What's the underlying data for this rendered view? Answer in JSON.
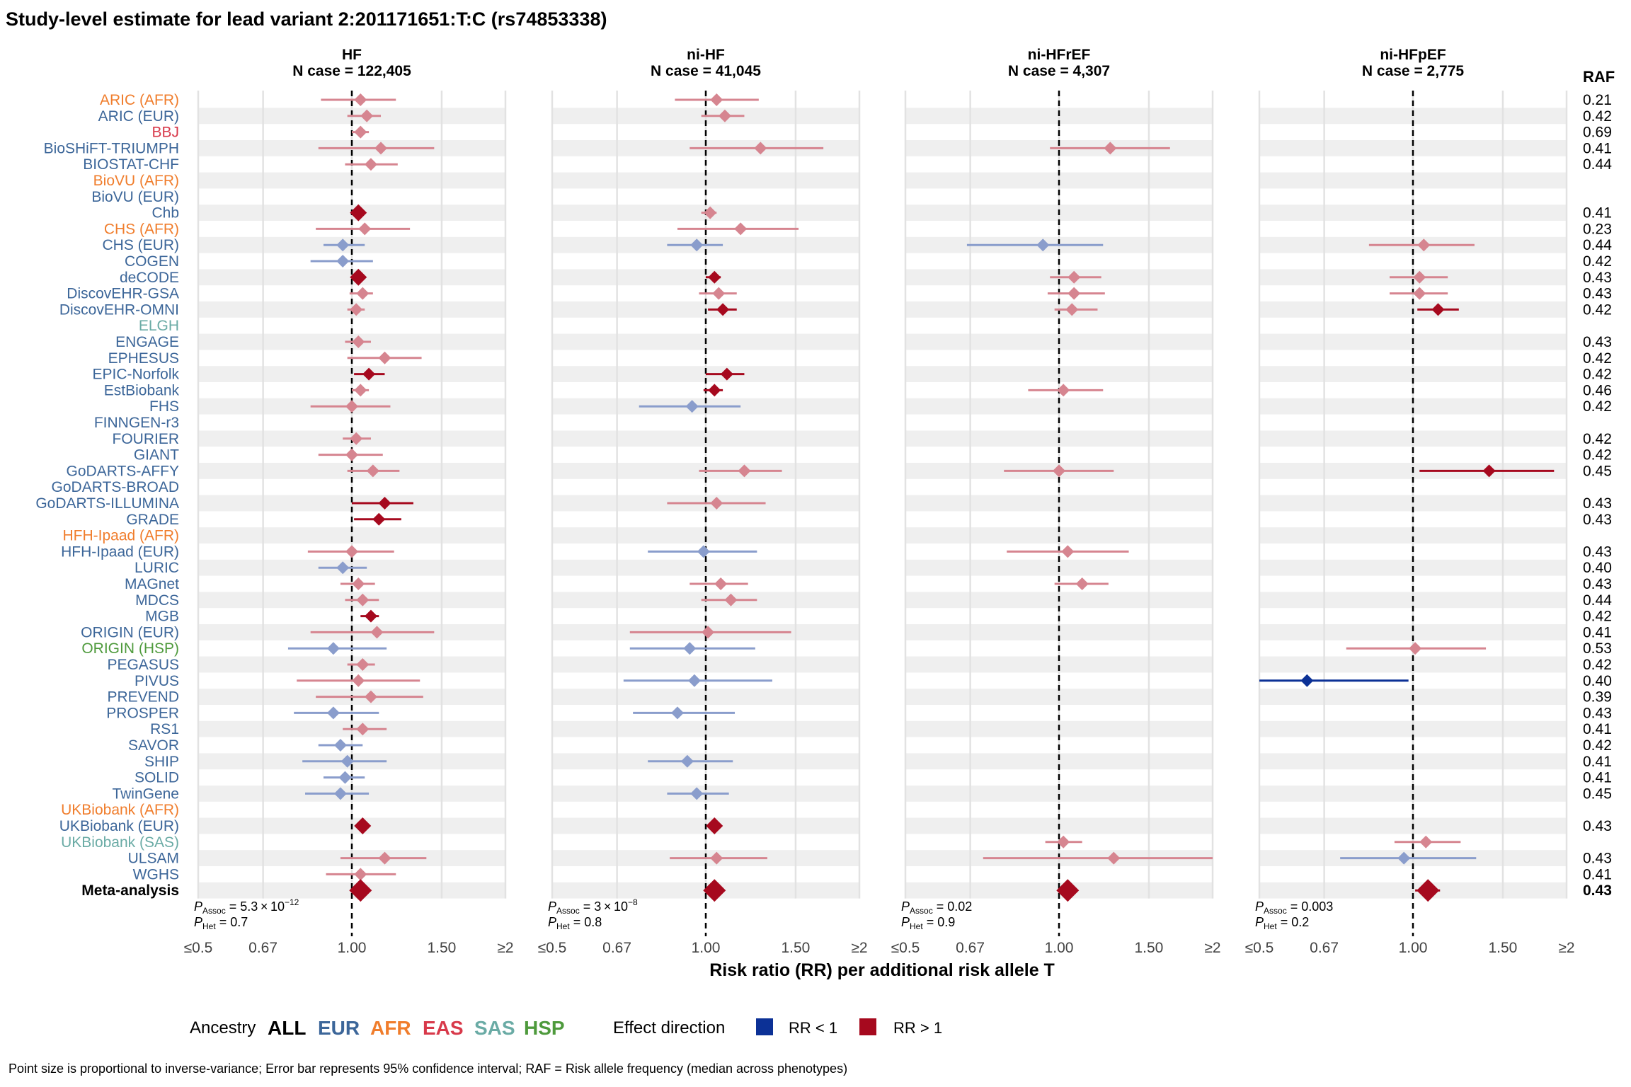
{
  "title": "Study-level estimate for lead variant 2:201171651:T:C (rs74853338)",
  "colors": {
    "EUR": "#3c6699",
    "AFR": "#f07d2c",
    "EAS": "#d8394a",
    "SAS": "#6aaba5",
    "HSP": "#4e9a3c",
    "ALL": "#000000",
    "neg": "#0c3196",
    "pos": "#a6091e",
    "neg_faded": "#8a9dcc",
    "pos_faded": "#d68590",
    "stripe": "#efefef",
    "grid": "#e2e2e2"
  },
  "chart_data": {
    "type": "forest",
    "xlabel": "Risk ratio (RR) per additional risk allele T",
    "x_ticks": [
      "≤0.5",
      "0.67",
      "1.00",
      "1.50",
      "≥2"
    ],
    "x_tick_values": [
      0.5,
      0.67,
      1.0,
      1.5,
      2.0
    ],
    "xlim": [
      0.5,
      2.0
    ],
    "x_scale": "log",
    "raf_header": "RAF",
    "studies": [
      {
        "name": "ARIC (AFR)",
        "ancestry": "AFR",
        "raf": "0.21"
      },
      {
        "name": "ARIC (EUR)",
        "ancestry": "EUR",
        "raf": "0.42"
      },
      {
        "name": "BBJ",
        "ancestry": "EAS",
        "raf": "0.69"
      },
      {
        "name": "BioSHiFT-TRIUMPH",
        "ancestry": "EUR",
        "raf": "0.41"
      },
      {
        "name": "BIOSTAT-CHF",
        "ancestry": "EUR",
        "raf": "0.44"
      },
      {
        "name": "BioVU (AFR)",
        "ancestry": "AFR",
        "raf": ""
      },
      {
        "name": "BioVU (EUR)",
        "ancestry": "EUR",
        "raf": ""
      },
      {
        "name": "Chb",
        "ancestry": "EUR",
        "raf": "0.41"
      },
      {
        "name": "CHS (AFR)",
        "ancestry": "AFR",
        "raf": "0.23"
      },
      {
        "name": "CHS (EUR)",
        "ancestry": "EUR",
        "raf": "0.44"
      },
      {
        "name": "COGEN",
        "ancestry": "EUR",
        "raf": "0.42"
      },
      {
        "name": "deCODE",
        "ancestry": "EUR",
        "raf": "0.43"
      },
      {
        "name": "DiscovEHR-GSA",
        "ancestry": "EUR",
        "raf": "0.43"
      },
      {
        "name": "DiscovEHR-OMNI",
        "ancestry": "EUR",
        "raf": "0.42"
      },
      {
        "name": "ELGH",
        "ancestry": "SAS",
        "raf": ""
      },
      {
        "name": "ENGAGE",
        "ancestry": "EUR",
        "raf": "0.43"
      },
      {
        "name": "EPHESUS",
        "ancestry": "EUR",
        "raf": "0.42"
      },
      {
        "name": "EPIC-Norfolk",
        "ancestry": "EUR",
        "raf": "0.42"
      },
      {
        "name": "EstBiobank",
        "ancestry": "EUR",
        "raf": "0.46"
      },
      {
        "name": "FHS",
        "ancestry": "EUR",
        "raf": "0.42"
      },
      {
        "name": "FINNGEN-r3",
        "ancestry": "EUR",
        "raf": ""
      },
      {
        "name": "FOURIER",
        "ancestry": "EUR",
        "raf": "0.42"
      },
      {
        "name": "GIANT",
        "ancestry": "EUR",
        "raf": "0.42"
      },
      {
        "name": "GoDARTS-AFFY",
        "ancestry": "EUR",
        "raf": "0.45"
      },
      {
        "name": "GoDARTS-BROAD",
        "ancestry": "EUR",
        "raf": ""
      },
      {
        "name": "GoDARTS-ILLUMINA",
        "ancestry": "EUR",
        "raf": "0.43"
      },
      {
        "name": "GRADE",
        "ancestry": "EUR",
        "raf": "0.43"
      },
      {
        "name": "HFH-Ipaad (AFR)",
        "ancestry": "AFR",
        "raf": ""
      },
      {
        "name": "HFH-Ipaad (EUR)",
        "ancestry": "EUR",
        "raf": "0.43"
      },
      {
        "name": "LURIC",
        "ancestry": "EUR",
        "raf": "0.40"
      },
      {
        "name": "MAGnet",
        "ancestry": "EUR",
        "raf": "0.43"
      },
      {
        "name": "MDCS",
        "ancestry": "EUR",
        "raf": "0.44"
      },
      {
        "name": "MGB",
        "ancestry": "EUR",
        "raf": "0.42"
      },
      {
        "name": "ORIGIN (EUR)",
        "ancestry": "EUR",
        "raf": "0.41"
      },
      {
        "name": "ORIGIN (HSP)",
        "ancestry": "HSP",
        "raf": "0.53"
      },
      {
        "name": "PEGASUS",
        "ancestry": "EUR",
        "raf": "0.42"
      },
      {
        "name": "PIVUS",
        "ancestry": "EUR",
        "raf": "0.40"
      },
      {
        "name": "PREVEND",
        "ancestry": "EUR",
        "raf": "0.39"
      },
      {
        "name": "PROSPER",
        "ancestry": "EUR",
        "raf": "0.43"
      },
      {
        "name": "RS1",
        "ancestry": "EUR",
        "raf": "0.41"
      },
      {
        "name": "SAVOR",
        "ancestry": "EUR",
        "raf": "0.42"
      },
      {
        "name": "SHIP",
        "ancestry": "EUR",
        "raf": "0.41"
      },
      {
        "name": "SOLID",
        "ancestry": "EUR",
        "raf": "0.41"
      },
      {
        "name": "TwinGene",
        "ancestry": "EUR",
        "raf": "0.45"
      },
      {
        "name": "UKBiobank (AFR)",
        "ancestry": "AFR",
        "raf": ""
      },
      {
        "name": "UKBiobank (EUR)",
        "ancestry": "EUR",
        "raf": "0.43"
      },
      {
        "name": "UKBiobank (SAS)",
        "ancestry": "SAS",
        "raf": ""
      },
      {
        "name": "ULSAM",
        "ancestry": "EUR",
        "raf": "0.43"
      },
      {
        "name": "WGHS",
        "ancestry": "EUR",
        "raf": "0.41"
      },
      {
        "name": "Meta-analysis",
        "ancestry": "ALL",
        "raf": "0.43"
      }
    ],
    "panels": [
      {
        "title": "HF",
        "subtitle": "N case = 122,405",
        "p_assoc": "5.3 × 10",
        "p_assoc_exp": "−12",
        "p_het": "0.7",
        "estimates": [
          {
            "row": 0,
            "rr": 1.04,
            "lo": 0.87,
            "hi": 1.22,
            "sig": false
          },
          {
            "row": 1,
            "rr": 1.07,
            "lo": 0.98,
            "hi": 1.14,
            "sig": false
          },
          {
            "row": 2,
            "rr": 1.04,
            "lo": 1.0,
            "hi": 1.08,
            "sig": false
          },
          {
            "row": 3,
            "rr": 1.14,
            "lo": 0.86,
            "hi": 1.45,
            "sig": false
          },
          {
            "row": 4,
            "rr": 1.09,
            "lo": 0.97,
            "hi": 1.23,
            "sig": false
          },
          {
            "row": 7,
            "rr": 1.03,
            "lo": 1.0,
            "hi": 1.06,
            "sig": true,
            "big": true
          },
          {
            "row": 8,
            "rr": 1.06,
            "lo": 0.85,
            "hi": 1.3,
            "sig": false
          },
          {
            "row": 9,
            "rr": 0.96,
            "lo": 0.88,
            "hi": 1.06,
            "sig": false
          },
          {
            "row": 10,
            "rr": 0.96,
            "lo": 0.83,
            "hi": 1.1,
            "sig": false
          },
          {
            "row": 11,
            "rr": 1.03,
            "lo": 1.0,
            "hi": 1.05,
            "sig": true,
            "big": true
          },
          {
            "row": 12,
            "rr": 1.05,
            "lo": 0.99,
            "hi": 1.1,
            "sig": false
          },
          {
            "row": 13,
            "rr": 1.02,
            "lo": 0.98,
            "hi": 1.06,
            "sig": false
          },
          {
            "row": 15,
            "rr": 1.03,
            "lo": 0.97,
            "hi": 1.09,
            "sig": false
          },
          {
            "row": 16,
            "rr": 1.16,
            "lo": 0.98,
            "hi": 1.37,
            "sig": false
          },
          {
            "row": 17,
            "rr": 1.08,
            "lo": 1.01,
            "hi": 1.16,
            "sig": true
          },
          {
            "row": 18,
            "rr": 1.04,
            "lo": 1.0,
            "hi": 1.08,
            "sig": false
          },
          {
            "row": 19,
            "rr": 1.0,
            "lo": 0.83,
            "hi": 1.19,
            "sig": false
          },
          {
            "row": 21,
            "rr": 1.02,
            "lo": 0.96,
            "hi": 1.09,
            "sig": false
          },
          {
            "row": 22,
            "rr": 1.0,
            "lo": 0.86,
            "hi": 1.15,
            "sig": false
          },
          {
            "row": 23,
            "rr": 1.1,
            "lo": 0.98,
            "hi": 1.24,
            "sig": false
          },
          {
            "row": 25,
            "rr": 1.16,
            "lo": 1.0,
            "hi": 1.32,
            "sig": true
          },
          {
            "row": 26,
            "rr": 1.13,
            "lo": 1.01,
            "hi": 1.25,
            "sig": true
          },
          {
            "row": 28,
            "rr": 1.0,
            "lo": 0.82,
            "hi": 1.21,
            "sig": false
          },
          {
            "row": 29,
            "rr": 0.96,
            "lo": 0.86,
            "hi": 1.07,
            "sig": false
          },
          {
            "row": 30,
            "rr": 1.03,
            "lo": 0.95,
            "hi": 1.11,
            "sig": false
          },
          {
            "row": 31,
            "rr": 1.05,
            "lo": 0.97,
            "hi": 1.13,
            "sig": false
          },
          {
            "row": 32,
            "rr": 1.09,
            "lo": 1.04,
            "hi": 1.13,
            "sig": true
          },
          {
            "row": 33,
            "rr": 1.12,
            "lo": 0.83,
            "hi": 1.45,
            "sig": false
          },
          {
            "row": 34,
            "rr": 0.92,
            "lo": 0.75,
            "hi": 1.17,
            "sig": false
          },
          {
            "row": 35,
            "rr": 1.05,
            "lo": 0.98,
            "hi": 1.11,
            "sig": false
          },
          {
            "row": 36,
            "rr": 1.03,
            "lo": 0.78,
            "hi": 1.36,
            "sig": false
          },
          {
            "row": 37,
            "rr": 1.09,
            "lo": 0.85,
            "hi": 1.38,
            "sig": false
          },
          {
            "row": 38,
            "rr": 0.92,
            "lo": 0.77,
            "hi": 1.13,
            "sig": false
          },
          {
            "row": 39,
            "rr": 1.05,
            "lo": 0.96,
            "hi": 1.17,
            "sig": false
          },
          {
            "row": 40,
            "rr": 0.95,
            "lo": 0.86,
            "hi": 1.05,
            "sig": false
          },
          {
            "row": 41,
            "rr": 0.98,
            "lo": 0.8,
            "hi": 1.17,
            "sig": false
          },
          {
            "row": 42,
            "rr": 0.97,
            "lo": 0.88,
            "hi": 1.06,
            "sig": false
          },
          {
            "row": 43,
            "rr": 0.95,
            "lo": 0.81,
            "hi": 1.08,
            "sig": false
          },
          {
            "row": 45,
            "rr": 1.05,
            "lo": 1.02,
            "hi": 1.08,
            "sig": true,
            "big": true
          },
          {
            "row": 47,
            "rr": 1.16,
            "lo": 0.95,
            "hi": 1.4,
            "sig": false
          },
          {
            "row": 48,
            "rr": 1.04,
            "lo": 0.89,
            "hi": 1.22,
            "sig": false
          },
          {
            "row": 49,
            "rr": 1.04,
            "lo": 1.03,
            "hi": 1.05,
            "sig": true,
            "meta": true
          }
        ]
      },
      {
        "title": "ni-HF",
        "subtitle": "N case = 41,045",
        "p_assoc": "3 × 10",
        "p_assoc_exp": "−8",
        "p_het": "0.8",
        "estimates": [
          {
            "row": 0,
            "rr": 1.05,
            "lo": 0.87,
            "hi": 1.27,
            "sig": false
          },
          {
            "row": 1,
            "rr": 1.09,
            "lo": 0.98,
            "hi": 1.19,
            "sig": false
          },
          {
            "row": 3,
            "rr": 1.28,
            "lo": 0.93,
            "hi": 1.7,
            "sig": false
          },
          {
            "row": 7,
            "rr": 1.02,
            "lo": 0.98,
            "hi": 1.05,
            "sig": false
          },
          {
            "row": 8,
            "rr": 1.17,
            "lo": 0.88,
            "hi": 1.52,
            "sig": false
          },
          {
            "row": 9,
            "rr": 0.96,
            "lo": 0.84,
            "hi": 1.08,
            "sig": false
          },
          {
            "row": 11,
            "rr": 1.04,
            "lo": 1.0,
            "hi": 1.07,
            "sig": true
          },
          {
            "row": 12,
            "rr": 1.06,
            "lo": 0.97,
            "hi": 1.15,
            "sig": false
          },
          {
            "row": 13,
            "rr": 1.08,
            "lo": 1.01,
            "hi": 1.15,
            "sig": true
          },
          {
            "row": 17,
            "rr": 1.1,
            "lo": 1.0,
            "hi": 1.19,
            "sig": true
          },
          {
            "row": 18,
            "rr": 1.04,
            "lo": 0.99,
            "hi": 1.08,
            "sig": true
          },
          {
            "row": 19,
            "rr": 0.94,
            "lo": 0.74,
            "hi": 1.17,
            "sig": false
          },
          {
            "row": 23,
            "rr": 1.19,
            "lo": 0.97,
            "hi": 1.41,
            "sig": false
          },
          {
            "row": 25,
            "rr": 1.05,
            "lo": 0.84,
            "hi": 1.31,
            "sig": false
          },
          {
            "row": 28,
            "rr": 0.99,
            "lo": 0.77,
            "hi": 1.26,
            "sig": false
          },
          {
            "row": 30,
            "rr": 1.07,
            "lo": 0.93,
            "hi": 1.21,
            "sig": false
          },
          {
            "row": 31,
            "rr": 1.12,
            "lo": 0.98,
            "hi": 1.26,
            "sig": false
          },
          {
            "row": 33,
            "rr": 1.01,
            "lo": 0.71,
            "hi": 1.47,
            "sig": false
          },
          {
            "row": 34,
            "rr": 0.93,
            "lo": 0.71,
            "hi": 1.25,
            "sig": false
          },
          {
            "row": 36,
            "rr": 0.95,
            "lo": 0.69,
            "hi": 1.35,
            "sig": false
          },
          {
            "row": 38,
            "rr": 0.88,
            "lo": 0.72,
            "hi": 1.14,
            "sig": false
          },
          {
            "row": 41,
            "rr": 0.92,
            "lo": 0.77,
            "hi": 1.13,
            "sig": false
          },
          {
            "row": 43,
            "rr": 0.96,
            "lo": 0.84,
            "hi": 1.11,
            "sig": false
          },
          {
            "row": 45,
            "rr": 1.04,
            "lo": 1.01,
            "hi": 1.07,
            "sig": true,
            "big": true
          },
          {
            "row": 47,
            "rr": 1.05,
            "lo": 0.85,
            "hi": 1.32,
            "sig": false
          },
          {
            "row": 49,
            "rr": 1.04,
            "lo": 1.02,
            "hi": 1.06,
            "sig": true,
            "meta": true
          }
        ]
      },
      {
        "title": "ni-HFrEF",
        "subtitle": "N case = 4,307",
        "p_assoc": "0.02",
        "p_assoc_exp": "",
        "p_het": "0.9",
        "estimates": [
          {
            "row": 3,
            "rr": 1.26,
            "lo": 0.96,
            "hi": 1.65,
            "sig": false
          },
          {
            "row": 9,
            "rr": 0.93,
            "lo": 0.66,
            "hi": 1.22,
            "sig": false
          },
          {
            "row": 11,
            "rr": 1.07,
            "lo": 0.96,
            "hi": 1.21,
            "sig": false
          },
          {
            "row": 12,
            "rr": 1.07,
            "lo": 0.95,
            "hi": 1.23,
            "sig": false
          },
          {
            "row": 13,
            "rr": 1.06,
            "lo": 0.98,
            "hi": 1.19,
            "sig": false
          },
          {
            "row": 18,
            "rr": 1.02,
            "lo": 0.87,
            "hi": 1.22,
            "sig": false
          },
          {
            "row": 23,
            "rr": 1.0,
            "lo": 0.78,
            "hi": 1.28,
            "sig": false
          },
          {
            "row": 28,
            "rr": 1.04,
            "lo": 0.79,
            "hi": 1.37,
            "sig": false
          },
          {
            "row": 30,
            "rr": 1.11,
            "lo": 0.98,
            "hi": 1.25,
            "sig": false
          },
          {
            "row": 46,
            "rr": 1.02,
            "lo": 0.94,
            "hi": 1.11,
            "sig": false
          },
          {
            "row": 47,
            "rr": 1.28,
            "lo": 0.71,
            "hi": 2.0,
            "sig": false
          },
          {
            "row": 49,
            "rr": 1.04,
            "lo": 1.0,
            "hi": 1.08,
            "sig": true,
            "meta": true
          }
        ]
      },
      {
        "title": "ni-HFpEF",
        "subtitle": "N case = 2,775",
        "p_assoc": "0.003",
        "p_assoc_exp": "",
        "p_het": "0.2",
        "estimates": [
          {
            "row": 9,
            "rr": 1.05,
            "lo": 0.82,
            "hi": 1.32,
            "sig": false
          },
          {
            "row": 11,
            "rr": 1.03,
            "lo": 0.9,
            "hi": 1.17,
            "sig": false
          },
          {
            "row": 12,
            "rr": 1.03,
            "lo": 0.9,
            "hi": 1.17,
            "sig": false
          },
          {
            "row": 13,
            "rr": 1.12,
            "lo": 1.02,
            "hi": 1.23,
            "sig": true
          },
          {
            "row": 23,
            "rr": 1.41,
            "lo": 1.03,
            "hi": 1.89,
            "sig": true
          },
          {
            "row": 34,
            "rr": 1.01,
            "lo": 0.74,
            "hi": 1.39,
            "sig": false
          },
          {
            "row": 36,
            "rr": 0.62,
            "lo": 0.5,
            "hi": 0.98,
            "sig": true
          },
          {
            "row": 46,
            "rr": 1.06,
            "lo": 0.92,
            "hi": 1.24,
            "sig": false
          },
          {
            "row": 47,
            "rr": 0.96,
            "lo": 0.72,
            "hi": 1.33,
            "sig": false
          },
          {
            "row": 49,
            "rr": 1.07,
            "lo": 1.01,
            "hi": 1.13,
            "sig": true,
            "meta": true
          }
        ]
      }
    ]
  },
  "legend": {
    "ancestry_label": "Ancestry",
    "ancestry_items": [
      "ALL",
      "EUR",
      "AFR",
      "EAS",
      "SAS",
      "HSP"
    ],
    "direction_label": "Effect direction",
    "neg_label": "RR < 1",
    "pos_label": "RR > 1"
  },
  "footnote": "Point size is proportional to inverse-variance; Error bar represents 95% confidence interval; RAF = Risk allele frequency (median across phenotypes)"
}
